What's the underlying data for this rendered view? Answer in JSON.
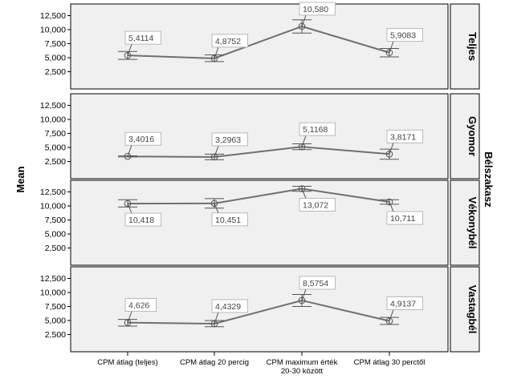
{
  "chart_data": {
    "type": "line",
    "ylabel": "Mean",
    "facet_title": "Bélszakasz",
    "categories": [
      "CPM átlag (teljes)",
      "CPM átlag 20 percig",
      "CPM maximum érték 20-30 között",
      "CPM átlag 30 perctől"
    ],
    "category_lines": [
      [
        "CPM átlag (teljes)"
      ],
      [
        "CPM átlag 20 percig"
      ],
      [
        "CPM maximum érték",
        "20-30 között"
      ],
      [
        "CPM átlag 30 perctől"
      ]
    ],
    "ylim": [
      0,
      14000
    ],
    "yticks": [
      2500,
      5000,
      7500,
      10000,
      12500
    ],
    "ytick_labels": [
      "2,500",
      "5,000",
      "7,500",
      "10,000",
      "12,500"
    ],
    "grid": false,
    "colors": {
      "line": "#707070",
      "panel_bg": "#f0f0f0",
      "border": "#000000",
      "label_bg": "#ffffff",
      "label_border": "#aaaaaa"
    },
    "panels": [
      {
        "name": "Teljes",
        "values": [
          5411.4,
          4875.2,
          10580,
          5908.3
        ],
        "labels": [
          "5,4114",
          "4,8752",
          "10,580",
          "5,9083"
        ],
        "err_low": [
          4700,
          4300,
          9400,
          5150
        ],
        "err_high": [
          6100,
          5500,
          11750,
          6650
        ],
        "label_pos": [
          "above",
          "above",
          "above",
          "above"
        ]
      },
      {
        "name": "Gyomor",
        "values": [
          3401.6,
          3296.3,
          5116.8,
          3817.1
        ],
        "labels": [
          "3,4016",
          "3,2963",
          "5,1168",
          "3,8171"
        ],
        "err_low": [
          3300,
          2800,
          4600,
          2900
        ],
        "err_high": [
          3500,
          3800,
          5650,
          4700
        ],
        "label_pos": [
          "above",
          "above",
          "above",
          "above"
        ]
      },
      {
        "name": "Vékonybél",
        "values": [
          10418,
          10451,
          13072,
          10711
        ],
        "labels": [
          "10,418",
          "10,451",
          "13,072",
          "10,711"
        ],
        "err_low": [
          9800,
          9600,
          12600,
          10300
        ],
        "err_high": [
          11100,
          11300,
          13500,
          11100
        ],
        "label_pos": [
          "below",
          "below",
          "below",
          "below"
        ]
      },
      {
        "name": "Vastagbél",
        "values": [
          4626,
          4432.9,
          8575.4,
          4913.7
        ],
        "labels": [
          "4,626",
          "4,4329",
          "8,5754",
          "4,9137"
        ],
        "err_low": [
          4000,
          3900,
          7500,
          4300
        ],
        "err_high": [
          5200,
          5000,
          9650,
          5550
        ],
        "label_pos": [
          "above",
          "above",
          "above",
          "above"
        ]
      }
    ]
  }
}
